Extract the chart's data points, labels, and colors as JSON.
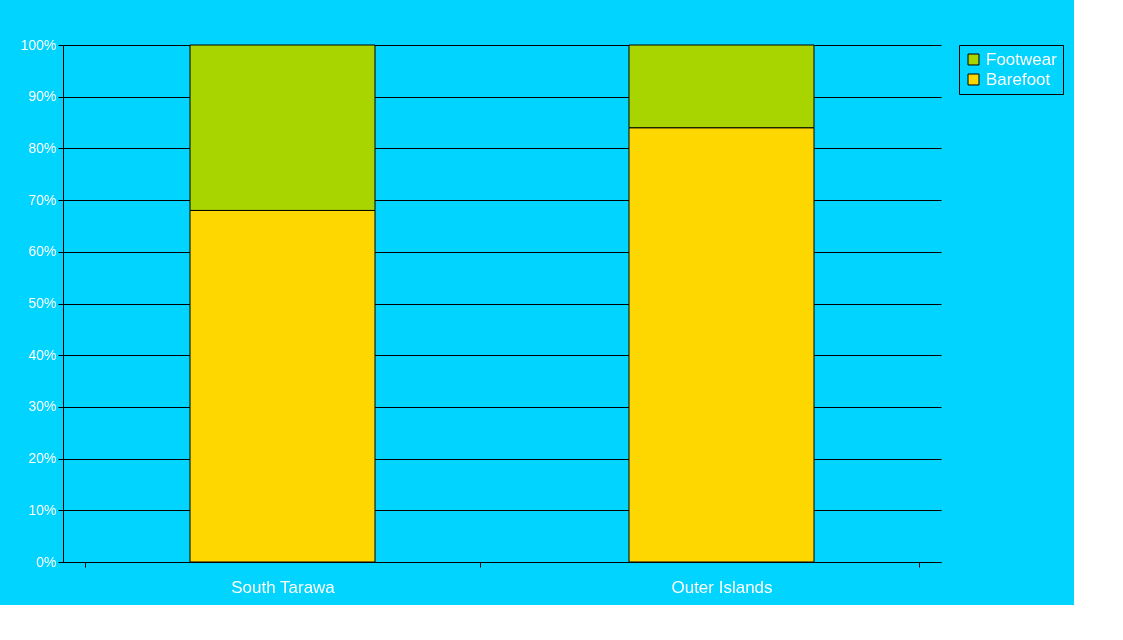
{
  "chart_data": {
    "type": "bar",
    "stacked": true,
    "categories": [
      "South Tarawa",
      "Outer Islands"
    ],
    "series": [
      {
        "name": "Barefoot",
        "color": "#ffd700",
        "values": [
          68,
          84
        ]
      },
      {
        "name": "Footwear",
        "color": "#a8d400",
        "values": [
          32,
          16
        ]
      }
    ],
    "ylim": [
      0,
      100
    ],
    "yticks": [
      {
        "value": 0,
        "label": "0%"
      },
      {
        "value": 10,
        "label": "10%"
      },
      {
        "value": 20,
        "label": "20%"
      },
      {
        "value": 30,
        "label": "30%"
      },
      {
        "value": 40,
        "label": "40%"
      },
      {
        "value": 50,
        "label": "50%"
      },
      {
        "value": 60,
        "label": "60%"
      },
      {
        "value": 70,
        "label": "70%"
      },
      {
        "value": 80,
        "label": "80%"
      },
      {
        "value": 90,
        "label": "90%"
      },
      {
        "value": 100,
        "label": "100%"
      }
    ],
    "grid": "y",
    "legend": "right"
  }
}
